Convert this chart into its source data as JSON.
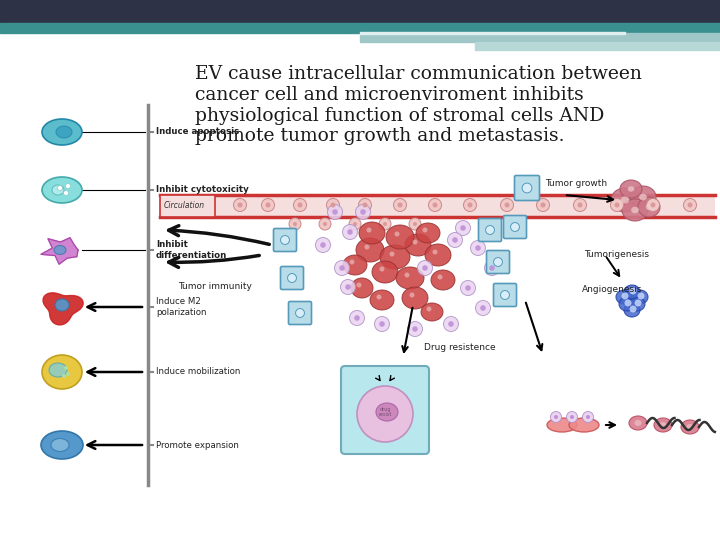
{
  "title_text": "EV cause intracellular communication between\ncancer cell and microenviroment inhibits\nphysiological function of stromal cells AND\npromote tumor growth and metastasis.",
  "title_color": "#1a1a1a",
  "title_fontsize": 13.5,
  "bg_color": "#ffffff",
  "header_bar_color": "#2d3246",
  "header_teal_color": "#3a8f8f",
  "header_light_teal": "#9fc7c7",
  "left_panel_labels": [
    "Induce apoptosis",
    "Inhibit cytotoxicity",
    "Inhibit\ndifferentiation",
    "Induce M2\npolarization",
    "Induce mobilization",
    "Promote expansion"
  ],
  "left_cell_colors": [
    "#4db8cc",
    "#6dcece",
    "#cc77cc",
    "#cc2222",
    "#e8c840",
    "#4499cc"
  ],
  "circulation_color": "#cc3333",
  "circulation_fill": "#f5e0e0",
  "tumor_immunity_text": "Tumor immunity",
  "circulation_text": "Circulation",
  "drug_resistance_text": "Drug resistence",
  "tumor_growth_text": "Tumor growth",
  "tumorigenesis_text": "Tumorigenesis",
  "angiogenesis_text": "Angiogenesis"
}
